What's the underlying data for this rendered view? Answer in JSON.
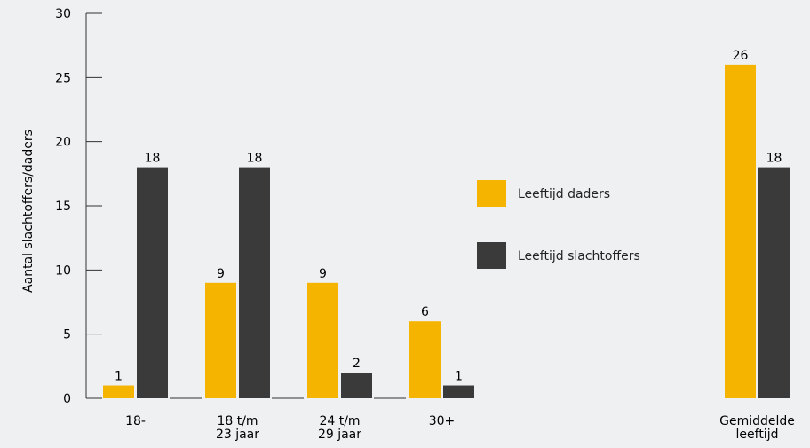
{
  "chart_data": {
    "type": "bar",
    "ylabel": "Aantal slachtoffers/daders",
    "ylim": [
      0,
      30
    ],
    "yticks": [
      0,
      5,
      10,
      15,
      20,
      25,
      30
    ],
    "grid": false,
    "legend_position": "right-middle",
    "categories": [
      [
        "18-"
      ],
      [
        "18 t/m",
        "23 jaar"
      ],
      [
        "24 t/m",
        "29 jaar"
      ],
      [
        "30+"
      ]
    ],
    "series": [
      {
        "name": "Leeftijd daders",
        "color": "#f5b400",
        "values": [
          1,
          9,
          9,
          6
        ]
      },
      {
        "name": "Leeftijd slachtoffers",
        "color": "#3a3a3a",
        "values": [
          18,
          18,
          2,
          1
        ]
      }
    ],
    "average": {
      "category": [
        "Gemiddelde",
        "leeftijd"
      ],
      "values": [
        26,
        18
      ]
    }
  }
}
